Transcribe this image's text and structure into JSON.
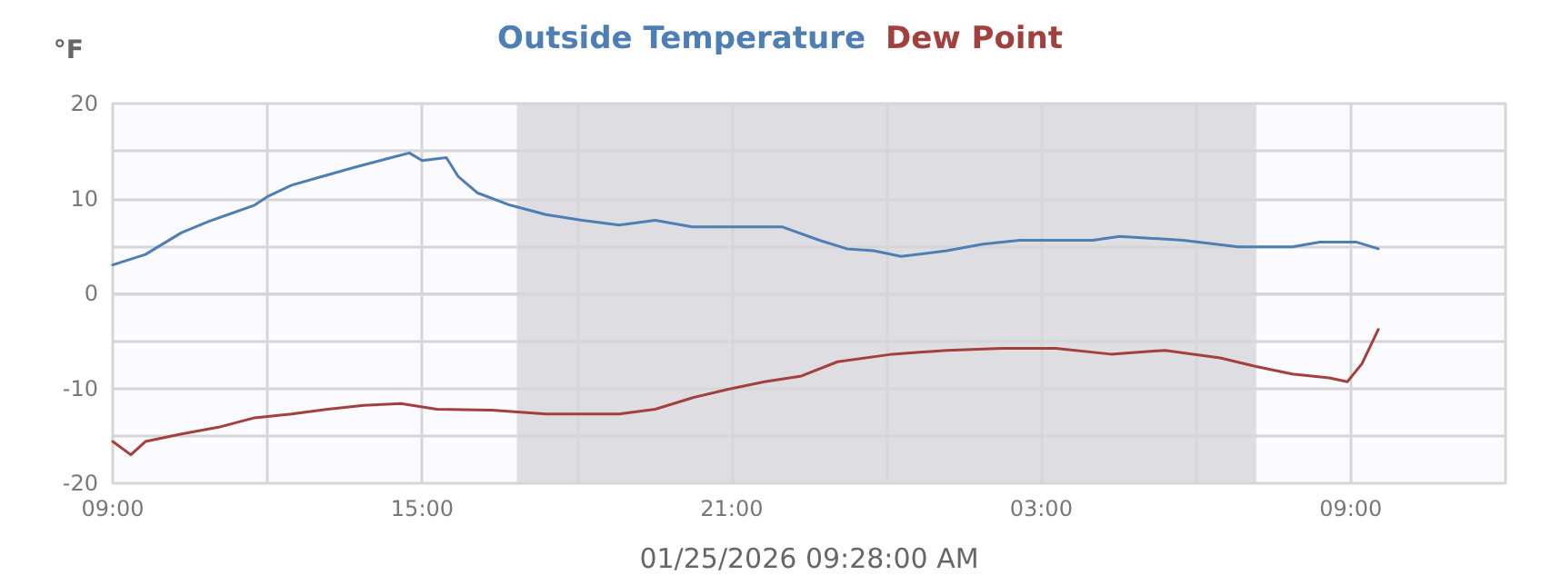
{
  "chart_data": {
    "type": "line",
    "xlabel": "01/25/2026 09:28:00 AM",
    "ylabel": "°F",
    "legend": "top",
    "grid": true,
    "marker": "none",
    "line_style": "solid",
    "xlim": [
      "2026-01-24T09:00",
      "2026-01-25T12:00"
    ],
    "xticks": [
      {
        "value": "2026-01-24T09:00",
        "label": "09:00"
      },
      {
        "value": "2026-01-24T12:00",
        "label": null
      },
      {
        "value": "2026-01-24T15:00",
        "label": "15:00"
      },
      {
        "value": "2026-01-24T18:00",
        "label": null
      },
      {
        "value": "2026-01-24T21:00",
        "label": "21:00"
      },
      {
        "value": "2026-01-25T00:00",
        "label": null
      },
      {
        "value": "2026-01-25T03:00",
        "label": "03:00"
      },
      {
        "value": "2026-01-25T06:00",
        "label": null
      },
      {
        "value": "2026-01-25T09:00",
        "label": "09:00"
      },
      {
        "value": "2026-01-25T12:00",
        "label": null
      }
    ],
    "ylim": [
      -20,
      20
    ],
    "yticks": [
      -20,
      {
        "value": -15,
        "label": null
      },
      -10,
      {
        "value": -5,
        "label": null
      },
      0,
      {
        "value": 5,
        "label": null
      },
      10,
      {
        "value": 15,
        "label": null
      },
      20
    ],
    "bands": [
      {
        "axis": "x",
        "from": "2026-01-24T16:50",
        "to": "2026-01-25T07:10",
        "color": "#dedee2"
      }
    ],
    "series": [
      {
        "name": "Outside Temperature",
        "color": "#4e7fb4",
        "x": [
          "2026-01-24T09:00",
          "2026-01-24T09:38",
          "2026-01-24T10:20",
          "2026-01-24T10:52",
          "2026-01-24T11:45",
          "2026-01-24T12:00",
          "2026-01-24T12:28",
          "2026-01-24T12:59",
          "2026-01-24T13:42",
          "2026-01-24T14:24",
          "2026-01-24T14:45",
          "2026-01-24T15:00",
          "2026-01-24T15:28",
          "2026-01-24T15:42",
          "2026-01-24T16:04",
          "2026-01-24T16:42",
          "2026-01-24T17:24",
          "2026-01-24T18:06",
          "2026-01-24T18:49",
          "2026-01-24T19:31",
          "2026-01-24T20:14",
          "2026-01-24T20:56",
          "2026-01-24T21:59",
          "2026-01-24T22:42",
          "2026-01-24T23:14",
          "2026-01-24T23:45",
          "2026-01-25T00:17",
          "2026-01-25T01:10",
          "2026-01-25T01:52",
          "2026-01-25T02:35",
          "2026-01-25T04:00",
          "2026-01-25T04:31",
          "2026-01-25T05:45",
          "2026-01-25T06:49",
          "2026-01-25T07:52",
          "2026-01-25T08:24",
          "2026-01-25T09:07",
          "2026-01-25T09:32"
        ],
        "values": [
          3.0,
          4.1,
          6.4,
          7.6,
          9.3,
          10.2,
          11.4,
          12.2,
          13.3,
          14.3,
          14.8,
          14.0,
          14.3,
          12.3,
          10.6,
          9.3,
          8.3,
          7.7,
          7.2,
          7.7,
          7.0,
          7.0,
          7.0,
          5.6,
          4.7,
          4.5,
          3.9,
          4.5,
          5.2,
          5.6,
          5.6,
          6.0,
          5.6,
          4.9,
          4.9,
          5.4,
          5.4,
          4.7
        ]
      },
      {
        "name": "Dew Point",
        "color": "#a3403d",
        "x": [
          "2026-01-24T09:00",
          "2026-01-24T09:21",
          "2026-01-24T09:38",
          "2026-01-24T10:20",
          "2026-01-24T11:03",
          "2026-01-24T11:45",
          "2026-01-24T12:28",
          "2026-01-24T13:10",
          "2026-01-24T13:52",
          "2026-01-24T14:35",
          "2026-01-24T15:17",
          "2026-01-24T16:21",
          "2026-01-24T17:24",
          "2026-01-24T18:49",
          "2026-01-24T19:31",
          "2026-01-24T20:14",
          "2026-01-24T20:56",
          "2026-01-24T21:38",
          "2026-01-24T22:21",
          "2026-01-24T23:03",
          "2026-01-25T00:07",
          "2026-01-25T01:10",
          "2026-01-25T02:14",
          "2026-01-25T03:17",
          "2026-01-25T04:21",
          "2026-01-25T05:24",
          "2026-01-25T06:28",
          "2026-01-25T07:10",
          "2026-01-25T07:52",
          "2026-01-25T08:35",
          "2026-01-25T08:56",
          "2026-01-25T09:13",
          "2026-01-25T09:32"
        ],
        "values": [
          -15.6,
          -17.0,
          -15.6,
          -14.8,
          -14.1,
          -13.1,
          -12.7,
          -12.2,
          -11.8,
          -11.6,
          -12.2,
          -12.3,
          -12.7,
          -12.7,
          -12.2,
          -11.0,
          -10.1,
          -9.3,
          -8.7,
          -7.2,
          -6.4,
          -6.0,
          -5.8,
          -5.8,
          -6.4,
          -6.0,
          -6.8,
          -7.7,
          -8.5,
          -8.9,
          -9.3,
          -7.4,
          -3.8
        ]
      }
    ]
  }
}
